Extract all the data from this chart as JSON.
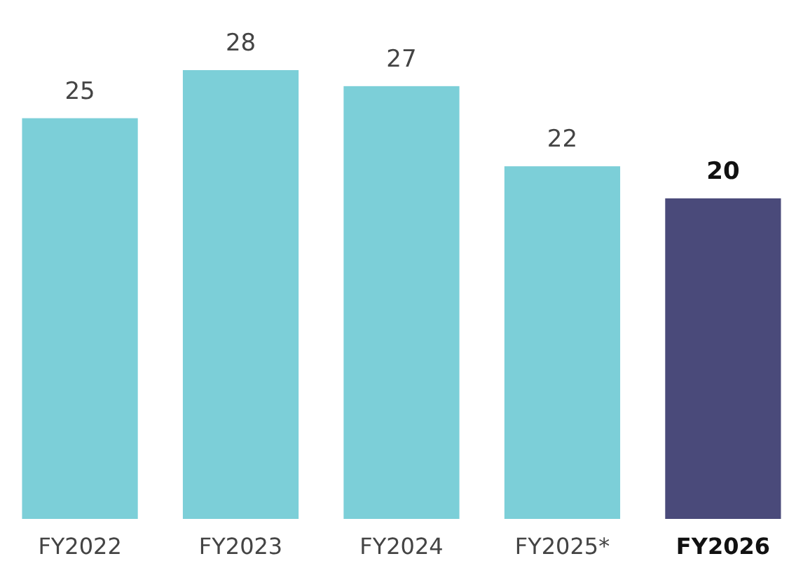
{
  "chart_data": {
    "type": "bar",
    "categories": [
      "FY2022",
      "FY2023",
      "FY2024",
      "FY2025*",
      "FY2026"
    ],
    "values": [
      25,
      28,
      27,
      22,
      20
    ],
    "colors": [
      "#7ccfd8",
      "#7ccfd8",
      "#7ccfd8",
      "#7ccfd8",
      "#4a4a7a"
    ],
    "data_labels": true
  }
}
